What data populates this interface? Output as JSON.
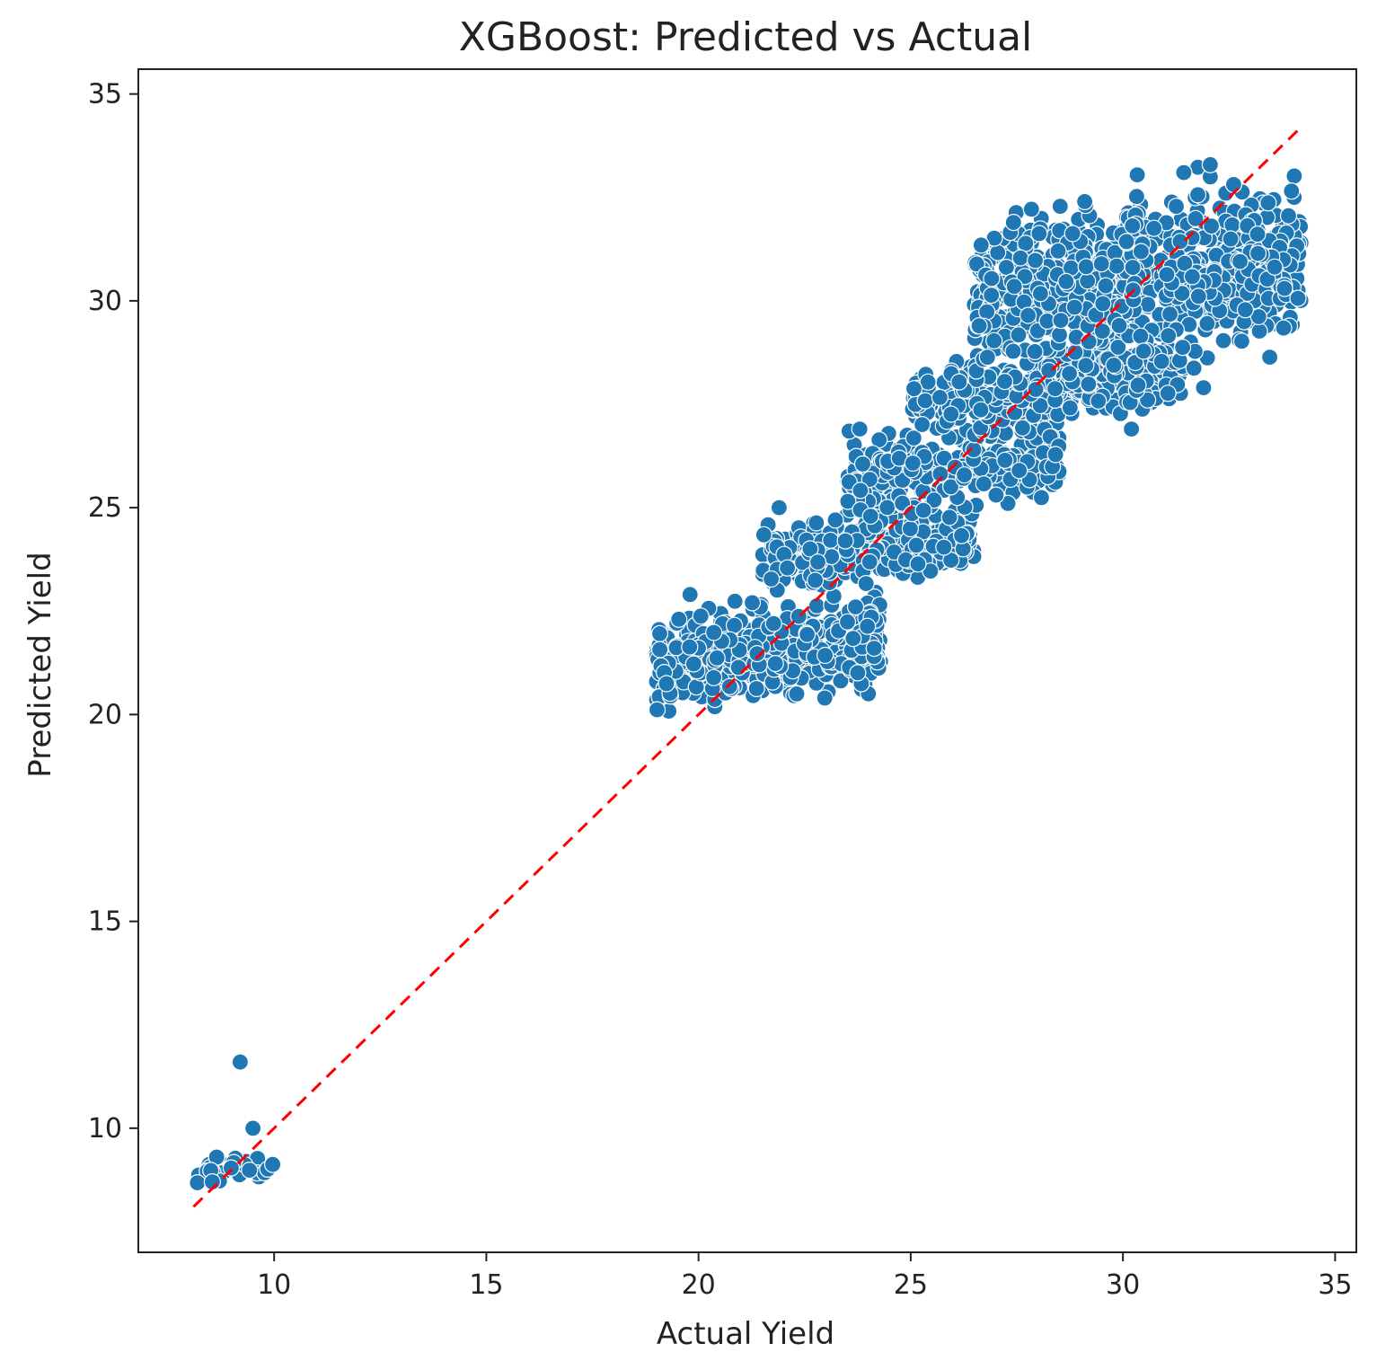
{
  "chart_data": {
    "type": "scatter",
    "title": "XGBoost: Predicted vs Actual",
    "xlabel": "Actual Yield",
    "ylabel": "Predicted Yield",
    "xlim": [
      6.8,
      35.5
    ],
    "ylim": [
      7.0,
      35.6
    ],
    "xticks": [
      "10",
      "15",
      "20",
      "25",
      "30",
      "35"
    ],
    "yticks": [
      "10",
      "15",
      "20",
      "25",
      "30",
      "35"
    ],
    "grid": false,
    "legend": "none",
    "marker_color": "#1f77b4",
    "marker_edge_color": "#ffffff",
    "reference_line": {
      "x": [
        8.1,
        34.2
      ],
      "y": [
        8.1,
        34.2
      ],
      "color": "#ff0000",
      "style": "dashed"
    },
    "clusters": [
      {
        "x_range": [
          8.0,
          10.0
        ],
        "y_center": 9.0,
        "y_spread": 0.15,
        "count": 40
      },
      {
        "x_range": [
          19.0,
          24.3
        ],
        "y_center": 21.5,
        "y_spread": 0.5,
        "count": 520
      },
      {
        "x_range": [
          21.5,
          26.5
        ],
        "y_center": 24.0,
        "y_spread": 0.35,
        "count": 300
      },
      {
        "x_range": [
          23.5,
          28.5
        ],
        "y_center": 26.0,
        "y_spread": 0.5,
        "count": 280
      },
      {
        "x_range": [
          25.0,
          31.5
        ],
        "y_center": 27.9,
        "y_spread": 0.35,
        "count": 380
      },
      {
        "x_range": [
          26.5,
          34.2
        ],
        "y_center": 30.5,
        "y_spread": 0.9,
        "count": 900
      }
    ],
    "points": [
      {
        "x": 9.2,
        "y": 11.6
      },
      {
        "x": 9.5,
        "y": 10.0
      },
      {
        "x": 19.8,
        "y": 22.9
      },
      {
        "x": 21.9,
        "y": 25.0
      },
      {
        "x": 23.8,
        "y": 26.9
      },
      {
        "x": 29.1,
        "y": 32.4
      },
      {
        "x": 30.2,
        "y": 26.9
      },
      {
        "x": 31.9,
        "y": 27.9
      },
      {
        "x": 23.7,
        "y": 22.6
      }
    ]
  }
}
